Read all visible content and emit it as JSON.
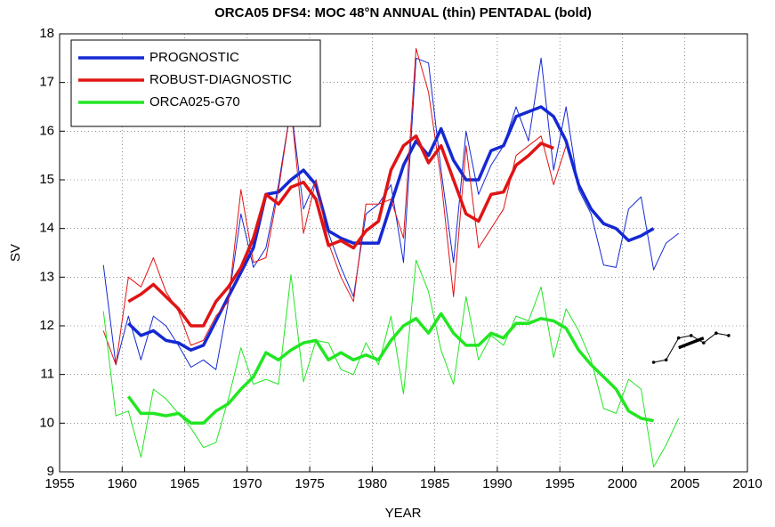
{
  "chart_data": {
    "type": "line",
    "title": "ORCA05 DFS4: MOC 48°N ANNUAL (thin) PENTADAL (bold)",
    "x_label": "YEAR",
    "y_label": "SV",
    "x": [
      1958.5,
      1959.5,
      1960.5,
      1961.5,
      1962.5,
      1963.5,
      1964.5,
      1965.5,
      1966.5,
      1967.5,
      1968.5,
      1969.5,
      1970.5,
      1971.5,
      1972.5,
      1973.5,
      1974.5,
      1975.5,
      1976.5,
      1977.5,
      1978.5,
      1979.5,
      1980.5,
      1981.5,
      1982.5,
      1983.5,
      1984.5,
      1985.5,
      1986.5,
      1987.5,
      1988.5,
      1989.5,
      1990.5,
      1991.5,
      1992.5,
      1993.5,
      1994.5,
      1995.5,
      1996.5,
      1997.5,
      1998.5,
      1999.5,
      2000.5,
      2001.5,
      2002.5,
      2003.5,
      2004.5
    ],
    "series": [
      {
        "name": "PROGNOSTIC",
        "color": "#1428d2",
        "annual": [
          13.25,
          11.2,
          12.2,
          11.3,
          12.2,
          12.0,
          11.6,
          11.15,
          11.3,
          11.1,
          12.5,
          14.3,
          13.2,
          13.6,
          14.9,
          16.5,
          14.4,
          15.0,
          13.9,
          13.2,
          12.6,
          14.3,
          14.5,
          14.9,
          13.3,
          17.5,
          17.4,
          15.2,
          13.3,
          16.0,
          14.7,
          15.3,
          15.7,
          16.5,
          15.8,
          17.5,
          15.2,
          16.5,
          14.8,
          14.3,
          13.25,
          13.2,
          14.4,
          14.65,
          13.15,
          13.7,
          13.9
        ],
        "pentadal": [
          null,
          null,
          12.05,
          11.8,
          11.9,
          11.7,
          11.65,
          11.5,
          11.6,
          12.1,
          12.6,
          13.1,
          13.6,
          14.7,
          14.75,
          15.0,
          15.2,
          14.9,
          13.95,
          13.8,
          13.7,
          13.7,
          13.7,
          14.5,
          15.3,
          15.8,
          15.5,
          16.05,
          15.4,
          15.0,
          15.0,
          15.6,
          15.7,
          16.3,
          16.4,
          16.5,
          16.3,
          15.8,
          14.9,
          14.4,
          14.1,
          14.0,
          13.75,
          13.85,
          14.0,
          null,
          null
        ]
      },
      {
        "name": "ROBUST-DIAGNOSTIC",
        "color": "#e01414",
        "annual": [
          11.9,
          11.2,
          13.0,
          12.8,
          13.4,
          12.7,
          12.3,
          11.6,
          11.7,
          12.2,
          12.5,
          14.8,
          13.3,
          13.4,
          14.8,
          16.5,
          13.9,
          15.0,
          13.7,
          13.0,
          12.5,
          14.5,
          14.5,
          14.6,
          13.8,
          17.7,
          16.8,
          15.0,
          12.6,
          15.7,
          13.6,
          14.0,
          14.4,
          15.5,
          15.7,
          15.9,
          14.9,
          15.7,
          null,
          null,
          null,
          null,
          null,
          null,
          null,
          null,
          null
        ],
        "pentadal": [
          null,
          null,
          12.5,
          12.65,
          12.85,
          12.6,
          12.35,
          12.0,
          12.0,
          12.5,
          12.8,
          13.2,
          13.8,
          14.7,
          14.5,
          14.85,
          14.95,
          14.6,
          13.65,
          13.75,
          13.6,
          13.95,
          14.15,
          15.2,
          15.7,
          15.9,
          15.35,
          15.7,
          15.0,
          14.3,
          14.15,
          14.7,
          14.75,
          15.3,
          15.5,
          15.75,
          15.65,
          null,
          null,
          null,
          null,
          null,
          null,
          null,
          null,
          null,
          null
        ]
      },
      {
        "name": "ORCA025-G70",
        "color": "#22e622",
        "annual": [
          12.3,
          10.15,
          10.25,
          9.3,
          10.7,
          10.5,
          10.2,
          9.9,
          9.5,
          9.6,
          10.5,
          11.55,
          10.8,
          10.9,
          10.8,
          13.05,
          10.85,
          11.7,
          11.65,
          11.1,
          11.0,
          11.65,
          11.2,
          12.2,
          10.6,
          13.35,
          12.7,
          11.5,
          10.8,
          12.6,
          11.3,
          11.8,
          11.6,
          12.2,
          12.1,
          12.8,
          11.35,
          12.35,
          11.9,
          11.3,
          10.3,
          10.2,
          10.9,
          10.7,
          9.1,
          9.55,
          10.1
        ],
        "pentadal": [
          null,
          null,
          10.55,
          10.2,
          10.2,
          10.15,
          10.2,
          10.0,
          10.0,
          10.25,
          10.4,
          10.7,
          10.95,
          11.45,
          11.3,
          11.5,
          11.65,
          11.7,
          11.3,
          11.45,
          11.3,
          11.4,
          11.3,
          11.7,
          12.0,
          12.15,
          11.85,
          12.25,
          11.85,
          11.6,
          11.6,
          11.85,
          11.75,
          12.05,
          12.05,
          12.15,
          12.1,
          11.95,
          11.5,
          11.2,
          10.95,
          10.7,
          10.25,
          10.1,
          10.05,
          null,
          null
        ]
      },
      {
        "color": "#000000",
        "x": [
          2002.5,
          2003.5,
          2004.5,
          2005.5,
          2006.5,
          2007.5,
          2008.5
        ],
        "annual": [
          11.25,
          11.3,
          11.75,
          11.8,
          11.65,
          11.85,
          11.8
        ],
        "pentadal": [
          null,
          null,
          11.55,
          11.65,
          11.75,
          null,
          null
        ]
      }
    ],
    "xlim": [
      1955,
      2010
    ],
    "xticks": [
      1955,
      1960,
      1965,
      1970,
      1975,
      1980,
      1985,
      1990,
      1995,
      2000,
      2005,
      2010
    ],
    "ylim": [
      9,
      18
    ],
    "yticks": [
      9,
      10,
      11,
      12,
      13,
      14,
      15,
      16,
      17,
      18
    ],
    "grid": true,
    "legend": "upper left"
  }
}
